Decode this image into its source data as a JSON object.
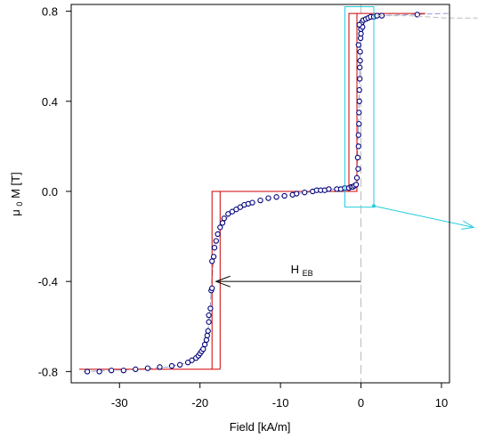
{
  "chart_data": {
    "type": "scatter",
    "xlabel": "Field [kA/m]",
    "ylabel_main": "μ",
    "ylabel_sub": "0",
    "ylabel_rest": "M [T]",
    "xlim": [
      -36,
      11
    ],
    "ylim": [
      -0.85,
      0.83
    ],
    "x_ticks": [
      -30,
      -20,
      -10,
      0,
      10
    ],
    "x_tick_labels": [
      "-30",
      "-20",
      "-10",
      "0",
      "10"
    ],
    "y_ticks": [
      -0.8,
      -0.4,
      0.0,
      0.4,
      0.8
    ],
    "y_tick_labels": [
      "-0.8",
      "-0.4",
      "0.0",
      "0.4",
      "0.8"
    ],
    "grid": false,
    "annotation": {
      "main": "H",
      "sub": "EB",
      "arrow_from": [
        0.0,
        -0.4
      ],
      "arrow_to": [
        -18.0,
        -0.4
      ]
    },
    "zero_line_x": 0.0,
    "colors": {
      "points_edge": "#00007a",
      "points_fill": "#ffffff",
      "dashed_curve": "#9999cc",
      "model_loop": "#cc0000",
      "inset_box": "#22ccdd",
      "zero_line": "#bbbbbb"
    },
    "model_loop_outer": [
      [
        -18.5,
        -0.79
      ],
      [
        -18.5,
        0.0
      ],
      [
        -1.5,
        0.0
      ],
      [
        -1.5,
        0.79
      ],
      [
        8,
        0.79
      ]
    ],
    "model_loop_inner": [
      [
        -17.5,
        -0.79
      ],
      [
        -17.5,
        0.0
      ],
      [
        -0.5,
        0.0
      ],
      [
        -0.5,
        0.79
      ]
    ],
    "model_loop_bottom": [
      [
        -35,
        -0.79
      ],
      [
        -17.5,
        -0.79
      ]
    ],
    "inset_box": {
      "x": [
        -2.0,
        1.6
      ],
      "y": [
        -0.07,
        0.82
      ]
    },
    "inset_pointer": {
      "from": [
        1.6,
        -0.065
      ],
      "to": [
        14.0,
        -0.16
      ]
    },
    "series": [
      {
        "points": [
          [
            -34.0,
            -0.8
          ],
          [
            -32.5,
            -0.8
          ],
          [
            -31.0,
            -0.795
          ],
          [
            -29.5,
            -0.795
          ],
          [
            -28.0,
            -0.79
          ],
          [
            -26.5,
            -0.785
          ],
          [
            -25.0,
            -0.78
          ],
          [
            -23.5,
            -0.775
          ],
          [
            -22.5,
            -0.77
          ],
          [
            -21.5,
            -0.76
          ],
          [
            -21.0,
            -0.75
          ],
          [
            -20.5,
            -0.74
          ],
          [
            -20.2,
            -0.73
          ],
          [
            -20.0,
            -0.72
          ],
          [
            -19.8,
            -0.71
          ],
          [
            -19.6,
            -0.7
          ],
          [
            -19.4,
            -0.68
          ],
          [
            -19.2,
            -0.66
          ],
          [
            -19.1,
            -0.64
          ],
          [
            -19.0,
            -0.62
          ],
          [
            -18.9,
            -0.58
          ],
          [
            -18.9,
            -0.55
          ],
          [
            -18.7,
            -0.52
          ],
          [
            -18.6,
            -0.44
          ],
          [
            -18.5,
            -0.43
          ],
          [
            -18.5,
            -0.31
          ],
          [
            -18.3,
            -0.29
          ],
          [
            -18.2,
            -0.25
          ],
          [
            -18.0,
            -0.22
          ],
          [
            -17.8,
            -0.19
          ],
          [
            -17.5,
            -0.16
          ],
          [
            -17.2,
            -0.14
          ],
          [
            -17.0,
            -0.12
          ],
          [
            -16.5,
            -0.1
          ],
          [
            -16.0,
            -0.09
          ],
          [
            -15.5,
            -0.08
          ],
          [
            -15.0,
            -0.07
          ],
          [
            -14.5,
            -0.06
          ],
          [
            -14.0,
            -0.055
          ],
          [
            -13.5,
            -0.05
          ],
          [
            -12.5,
            -0.04
          ],
          [
            -11.5,
            -0.03
          ],
          [
            -10.5,
            -0.025
          ],
          [
            -9.5,
            -0.02
          ],
          [
            -8.5,
            -0.015
          ],
          [
            -8.0,
            -0.01
          ],
          [
            -7.0,
            -0.005
          ],
          [
            -6.0,
            0.0
          ],
          [
            -5.5,
            0.005
          ],
          [
            -5.0,
            0.005
          ],
          [
            -4.5,
            0.005
          ],
          [
            -4.0,
            0.01
          ],
          [
            -3.0,
            0.01
          ],
          [
            -2.5,
            0.01
          ],
          [
            -2.0,
            0.015
          ],
          [
            -1.5,
            0.015
          ],
          [
            -1.2,
            0.02
          ],
          [
            -1.0,
            0.02
          ],
          [
            -0.8,
            0.025
          ],
          [
            -0.6,
            0.03
          ],
          [
            -0.5,
            0.06
          ],
          [
            -0.4,
            0.15
          ],
          [
            -0.3,
            0.25
          ],
          [
            -0.25,
            0.35
          ],
          [
            -0.2,
            0.45
          ],
          [
            -0.15,
            0.55
          ],
          [
            -0.1,
            0.62
          ],
          [
            -0.05,
            0.68
          ],
          [
            0.0,
            0.72
          ],
          [
            0.05,
            0.74
          ],
          [
            0.1,
            0.75
          ],
          [
            0.3,
            0.76
          ],
          [
            0.6,
            0.765
          ],
          [
            0.9,
            0.77
          ],
          [
            1.2,
            0.775
          ],
          [
            1.6,
            0.775
          ],
          [
            2.0,
            0.78
          ],
          [
            2.6,
            0.78
          ],
          [
            7.0,
            0.785
          ],
          [
            -0.35,
            0.1
          ],
          [
            -0.3,
            0.2
          ],
          [
            -0.25,
            0.3
          ],
          [
            -0.2,
            0.4
          ],
          [
            -0.15,
            0.5
          ],
          [
            -0.1,
            0.58
          ],
          [
            0.0,
            0.7
          ],
          [
            0.2,
            0.73
          ],
          [
            -0.3,
            0.65
          ],
          [
            -0.2,
            0.74
          ]
        ]
      }
    ],
    "dashed_curve": [
      [
        -34.5,
        -0.8
      ],
      [
        -28.0,
        -0.79
      ],
      [
        -24.0,
        -0.78
      ],
      [
        -21.5,
        -0.76
      ],
      [
        -20.2,
        -0.73
      ],
      [
        -19.5,
        -0.69
      ],
      [
        -19.0,
        -0.62
      ],
      [
        -18.7,
        -0.5
      ],
      [
        -18.5,
        -0.38
      ],
      [
        -18.2,
        -0.26
      ],
      [
        -17.6,
        -0.17
      ],
      [
        -16.5,
        -0.11
      ],
      [
        -15.0,
        -0.07
      ],
      [
        -12.0,
        -0.035
      ],
      [
        -8.0,
        -0.01
      ],
      [
        -4.0,
        0.008
      ],
      [
        -1.5,
        0.015
      ],
      [
        -0.8,
        0.025
      ],
      [
        -0.5,
        0.08
      ],
      [
        -0.3,
        0.3
      ],
      [
        -0.15,
        0.55
      ],
      [
        0.0,
        0.72
      ],
      [
        0.5,
        0.765
      ],
      [
        2.0,
        0.78
      ],
      [
        6.0,
        0.785
      ],
      [
        10.5,
        0.79
      ],
      [
        14.5,
        0.79
      ]
    ],
    "dashed_curve_2": [
      [
        2.0,
        0.78
      ],
      [
        6.0,
        0.78
      ],
      [
        10.5,
        0.77
      ],
      [
        14.5,
        0.77
      ]
    ]
  }
}
